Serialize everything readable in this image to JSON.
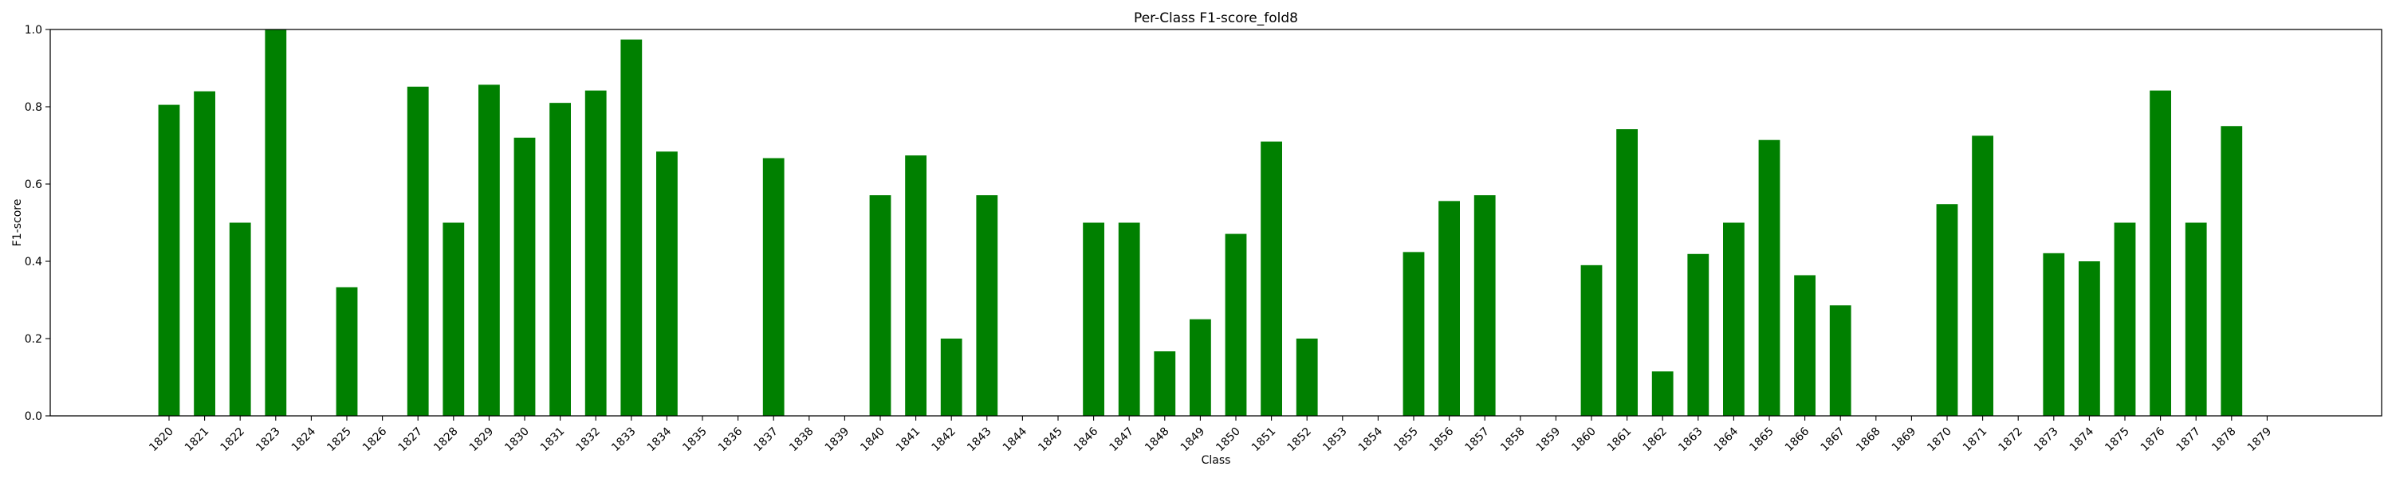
{
  "chart_data": {
    "type": "bar",
    "title": "Per-Class F1-score_fold8",
    "xlabel": "Class",
    "ylabel": "F1-score",
    "ylim": [
      0,
      1.0
    ],
    "yticks": [
      "0.0",
      "0.2",
      "0.4",
      "0.6",
      "0.8",
      "1.0"
    ],
    "bar_color": "#008000",
    "grid": false,
    "categories": [
      "1820",
      "1821",
      "1822",
      "1823",
      "1824",
      "1825",
      "1826",
      "1827",
      "1828",
      "1829",
      "1830",
      "1831",
      "1832",
      "1833",
      "1834",
      "1835",
      "1836",
      "1837",
      "1838",
      "1839",
      "1840",
      "1841",
      "1842",
      "1843",
      "1844",
      "1845",
      "1846",
      "1847",
      "1848",
      "1849",
      "1850",
      "1851",
      "1852",
      "1853",
      "1854",
      "1855",
      "1856",
      "1857",
      "1858",
      "1859",
      "1860",
      "1861",
      "1862",
      "1863",
      "1864",
      "1865",
      "1866",
      "1867",
      "1868",
      "1869",
      "1870",
      "1871",
      "1872",
      "1873",
      "1874",
      "1875",
      "1876",
      "1877",
      "1878",
      "1879"
    ],
    "values": [
      0.805,
      0.84,
      0.5,
      1.0,
      0.0,
      0.333,
      0.0,
      0.852,
      0.5,
      0.857,
      0.72,
      0.81,
      0.842,
      0.974,
      0.684,
      0.0,
      0.0,
      0.667,
      0.0,
      0.0,
      0.571,
      0.674,
      0.2,
      0.571,
      0.0,
      0.0,
      0.5,
      0.5,
      0.167,
      0.25,
      0.471,
      0.71,
      0.2,
      0.0,
      0.0,
      0.424,
      0.556,
      0.571,
      0.0,
      0.0,
      0.39,
      0.742,
      0.115,
      0.419,
      0.5,
      0.714,
      0.364,
      0.286,
      0.0,
      0.0,
      0.548,
      0.725,
      0.0,
      0.421,
      0.4,
      0.5,
      0.842,
      0.5,
      0.75,
      0.0
    ]
  }
}
